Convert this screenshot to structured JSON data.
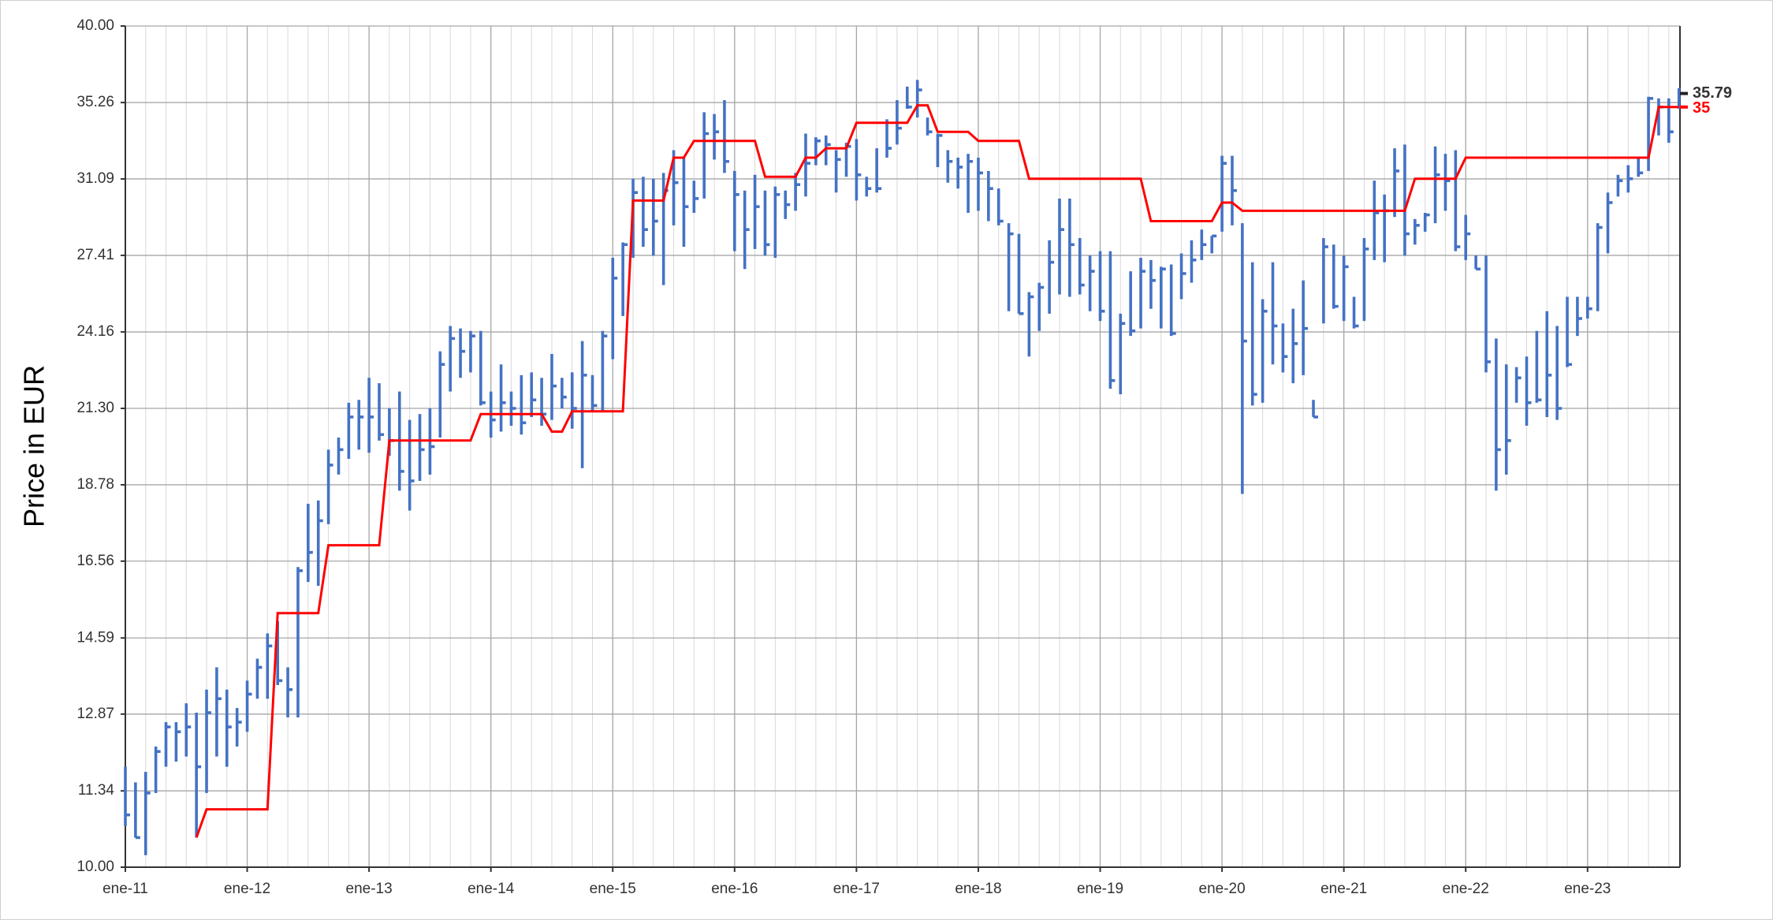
{
  "chart_data": {
    "type": "ohlc",
    "y_label": "Price in EUR",
    "log_y": true,
    "grid": true,
    "ylim": [
      10,
      40
    ],
    "yticks": [
      {
        "value": 10,
        "label": "10.00"
      },
      11.34,
      12.87,
      14.59,
      16.56,
      18.78,
      {
        "value": 21.3,
        "label": "21.30"
      },
      24.16,
      27.41,
      31.09,
      35.26,
      {
        "value": 40,
        "label": "40.00"
      }
    ],
    "categories": [
      "ene-11",
      null,
      null,
      null,
      null,
      null,
      null,
      null,
      null,
      null,
      null,
      null,
      "ene-12",
      null,
      null,
      null,
      null,
      null,
      null,
      null,
      null,
      null,
      null,
      null,
      "ene-13",
      null,
      null,
      null,
      null,
      null,
      null,
      null,
      null,
      null,
      null,
      null,
      "ene-14",
      null,
      null,
      null,
      null,
      null,
      null,
      null,
      null,
      null,
      null,
      null,
      "ene-15",
      null,
      null,
      null,
      null,
      null,
      null,
      null,
      null,
      null,
      null,
      null,
      "ene-16",
      null,
      null,
      null,
      null,
      null,
      null,
      null,
      null,
      null,
      null,
      null,
      "ene-17",
      null,
      null,
      null,
      null,
      null,
      null,
      null,
      null,
      null,
      null,
      null,
      "ene-18",
      null,
      null,
      null,
      null,
      null,
      null,
      null,
      null,
      null,
      null,
      null,
      "ene-19",
      null,
      null,
      null,
      null,
      null,
      null,
      null,
      null,
      null,
      null,
      null,
      "ene-20",
      null,
      null,
      null,
      null,
      null,
      null,
      null,
      null,
      null,
      null,
      null,
      "ene-21",
      null,
      null,
      null,
      null,
      null,
      null,
      null,
      null,
      null,
      null,
      null,
      "ene-22",
      null,
      null,
      null,
      null,
      null,
      null,
      null,
      null,
      null,
      null,
      null,
      "ene-23",
      null,
      null,
      null,
      null,
      null,
      null,
      null,
      null,
      null
    ],
    "series": [
      {
        "color": "#4472c4",
        "high": [
          11.8,
          11.5,
          11.7,
          12.2,
          12.7,
          12.7,
          13.1,
          12.9,
          13.4,
          13.9,
          13.4,
          13.0,
          13.6,
          14.1,
          14.7,
          15.0,
          13.9,
          16.4,
          18.2,
          18.3,
          19.9,
          20.3,
          21.5,
          21.6,
          22.4,
          22.2,
          21.3,
          21.9,
          20.9,
          21.1,
          21.3,
          23.4,
          24.4,
          24.3,
          24.2,
          24.2,
          21.9,
          22.9,
          21.9,
          22.5,
          22.6,
          22.4,
          23.3,
          22.4,
          22.6,
          23.8,
          22.5,
          24.2,
          27.3,
          28.0,
          31.1,
          31.2,
          31.1,
          31.4,
          32.6,
          32.2,
          31.0,
          34.7,
          34.6,
          35.4,
          31.5,
          30.5,
          31.3,
          30.5,
          30.7,
          30.5,
          31.4,
          33.5,
          33.3,
          33.4,
          32.6,
          33.0,
          33.2,
          31.2,
          32.7,
          34.3,
          35.4,
          36.2,
          36.6,
          34.4,
          33.5,
          32.6,
          32.2,
          32.4,
          32.2,
          31.5,
          30.6,
          28.9,
          28.4,
          25.8,
          26.2,
          28.1,
          30.1,
          30.1,
          28.2,
          27.4,
          27.6,
          27.6,
          24.9,
          26.7,
          27.3,
          27.2,
          26.9,
          27.0,
          27.5,
          28.1,
          28.6,
          28.3,
          32.3,
          32.3,
          28.9,
          27.1,
          25.5,
          27.1,
          24.5,
          25.1,
          26.3,
          21.6,
          28.2,
          27.9,
          27.4,
          25.6,
          28.2,
          31.0,
          30.3,
          32.7,
          32.9,
          29.1,
          29.4,
          32.8,
          32.4,
          32.6,
          29.3,
          27.4,
          27.4,
          23.9,
          22.9,
          22.8,
          23.2,
          24.2,
          25.0,
          24.4,
          25.6,
          25.6,
          25.6,
          28.9,
          30.4,
          31.3,
          31.8,
          32.2,
          35.6,
          35.5,
          35.5,
          36.1
        ],
        "low": [
          10.7,
          10.5,
          10.2,
          11.3,
          11.8,
          11.9,
          12.0,
          10.5,
          11.3,
          12.0,
          11.8,
          12.2,
          12.5,
          13.2,
          13.2,
          13.5,
          12.8,
          12.8,
          16.0,
          15.9,
          17.6,
          19.1,
          19.6,
          19.9,
          19.8,
          20.2,
          19.7,
          18.6,
          18.0,
          18.9,
          19.1,
          20.3,
          21.9,
          22.4,
          22.6,
          21.4,
          20.3,
          20.5,
          20.7,
          20.4,
          21.0,
          20.7,
          20.9,
          21.3,
          20.6,
          19.3,
          21.2,
          21.2,
          23.1,
          24.8,
          27.3,
          27.8,
          27.4,
          26.1,
          28.8,
          27.8,
          29.4,
          30.1,
          32.1,
          31.4,
          27.6,
          26.8,
          27.7,
          27.4,
          27.3,
          29.1,
          29.5,
          30.2,
          31.8,
          31.8,
          30.4,
          31.2,
          30.0,
          30.2,
          30.4,
          32.2,
          32.9,
          34.9,
          34.4,
          33.4,
          31.7,
          30.9,
          30.6,
          29.4,
          29.5,
          29.0,
          28.8,
          25.0,
          24.9,
          23.2,
          24.2,
          24.9,
          25.7,
          25.6,
          25.7,
          25.0,
          24.6,
          22.0,
          21.8,
          24.0,
          24.3,
          25.1,
          24.3,
          24.0,
          25.5,
          26.2,
          27.2,
          27.5,
          28.5,
          28.8,
          18.5,
          21.4,
          21.5,
          22.9,
          22.6,
          22.2,
          22.5,
          21.0,
          24.5,
          25.1,
          24.6,
          24.3,
          24.6,
          27.2,
          27.1,
          29.2,
          27.4,
          27.9,
          28.5,
          28.9,
          29.5,
          27.6,
          27.2,
          26.8,
          22.6,
          18.6,
          19.1,
          21.5,
          20.7,
          21.5,
          21.0,
          20.9,
          22.8,
          24.0,
          24.7,
          25.0,
          27.5,
          30.2,
          30.4,
          31.2,
          31.5,
          33.4,
          33.0,
          34.9
        ],
        "close": [
          10.9,
          10.5,
          11.3,
          12.1,
          12.6,
          12.5,
          12.6,
          11.8,
          12.9,
          13.2,
          12.6,
          12.7,
          13.3,
          13.9,
          14.4,
          13.6,
          13.4,
          16.3,
          16.8,
          17.7,
          19.4,
          19.9,
          21.0,
          21.0,
          21.0,
          20.4,
          20.2,
          19.2,
          18.9,
          19.9,
          20.0,
          22.9,
          23.9,
          23.4,
          24.0,
          21.5,
          20.9,
          21.5,
          21.3,
          20.8,
          21.6,
          21.1,
          22.1,
          21.7,
          21.3,
          22.5,
          21.4,
          24.0,
          26.4,
          27.9,
          30.4,
          28.6,
          29.0,
          30.5,
          30.9,
          29.7,
          30.1,
          33.5,
          33.6,
          32.0,
          30.3,
          28.6,
          29.7,
          27.9,
          30.3,
          29.8,
          30.8,
          31.9,
          33.1,
          32.9,
          32.1,
          32.8,
          31.3,
          30.6,
          30.6,
          32.7,
          33.8,
          35.0,
          36.0,
          33.6,
          33.4,
          32.0,
          31.7,
          32.0,
          31.4,
          30.6,
          29.0,
          28.4,
          24.9,
          25.6,
          26.0,
          27.1,
          28.6,
          27.9,
          26.1,
          26.7,
          25.0,
          22.3,
          24.5,
          24.2,
          26.7,
          26.3,
          26.8,
          24.1,
          26.6,
          27.2,
          27.9,
          28.3,
          31.9,
          30.5,
          23.8,
          21.8,
          25.0,
          24.4,
          23.2,
          23.7,
          24.3,
          21.0,
          27.8,
          25.2,
          26.9,
          24.4,
          27.7,
          29.4,
          29.5,
          31.5,
          28.4,
          28.8,
          29.3,
          31.3,
          31.0,
          27.8,
          28.4,
          26.8,
          23.0,
          19.9,
          20.2,
          22.4,
          21.5,
          21.6,
          22.5,
          21.3,
          22.9,
          24.7,
          25.1,
          28.7,
          29.9,
          31.0,
          31.1,
          31.4,
          35.5,
          35.0,
          33.6,
          35.79
        ]
      }
    ],
    "line": {
      "color": "#ff0000",
      "values": [
        null,
        null,
        null,
        null,
        null,
        null,
        null,
        10.5,
        11.0,
        11.0,
        11.0,
        11.0,
        11.0,
        11.0,
        11.0,
        15.2,
        15.2,
        15.2,
        15.2,
        15.2,
        17.0,
        17.0,
        17.0,
        17.0,
        17.0,
        17.0,
        20.2,
        20.2,
        20.2,
        20.2,
        20.2,
        20.2,
        20.2,
        20.2,
        20.2,
        21.1,
        21.1,
        21.1,
        21.1,
        21.1,
        21.1,
        21.1,
        20.5,
        20.5,
        21.2,
        21.2,
        21.2,
        21.2,
        21.2,
        21.2,
        30.0,
        30.0,
        30.0,
        30.0,
        32.2,
        32.2,
        33.1,
        33.1,
        33.1,
        33.1,
        33.1,
        33.1,
        33.1,
        31.2,
        31.2,
        31.2,
        31.2,
        32.2,
        32.2,
        32.7,
        32.7,
        32.7,
        34.1,
        34.1,
        34.1,
        34.1,
        34.1,
        34.1,
        35.1,
        35.1,
        33.6,
        33.6,
        33.6,
        33.6,
        33.1,
        33.1,
        33.1,
        33.1,
        33.1,
        31.1,
        31.1,
        31.1,
        31.1,
        31.1,
        31.1,
        31.1,
        31.1,
        31.1,
        31.1,
        31.1,
        31.1,
        29.0,
        29.0,
        29.0,
        29.0,
        29.0,
        29.0,
        29.0,
        29.9,
        29.9,
        29.5,
        29.5,
        29.5,
        29.5,
        29.5,
        29.5,
        29.5,
        29.5,
        29.5,
        29.5,
        29.5,
        29.5,
        29.5,
        29.5,
        29.5,
        29.5,
        29.5,
        31.1,
        31.1,
        31.1,
        31.1,
        31.1,
        32.2,
        32.2,
        32.2,
        32.2,
        32.2,
        32.2,
        32.2,
        32.2,
        32.2,
        32.2,
        32.2,
        32.2,
        32.2,
        32.2,
        32.2,
        32.2,
        32.2,
        32.2,
        32.2,
        35,
        35,
        35
      ]
    }
  }
}
